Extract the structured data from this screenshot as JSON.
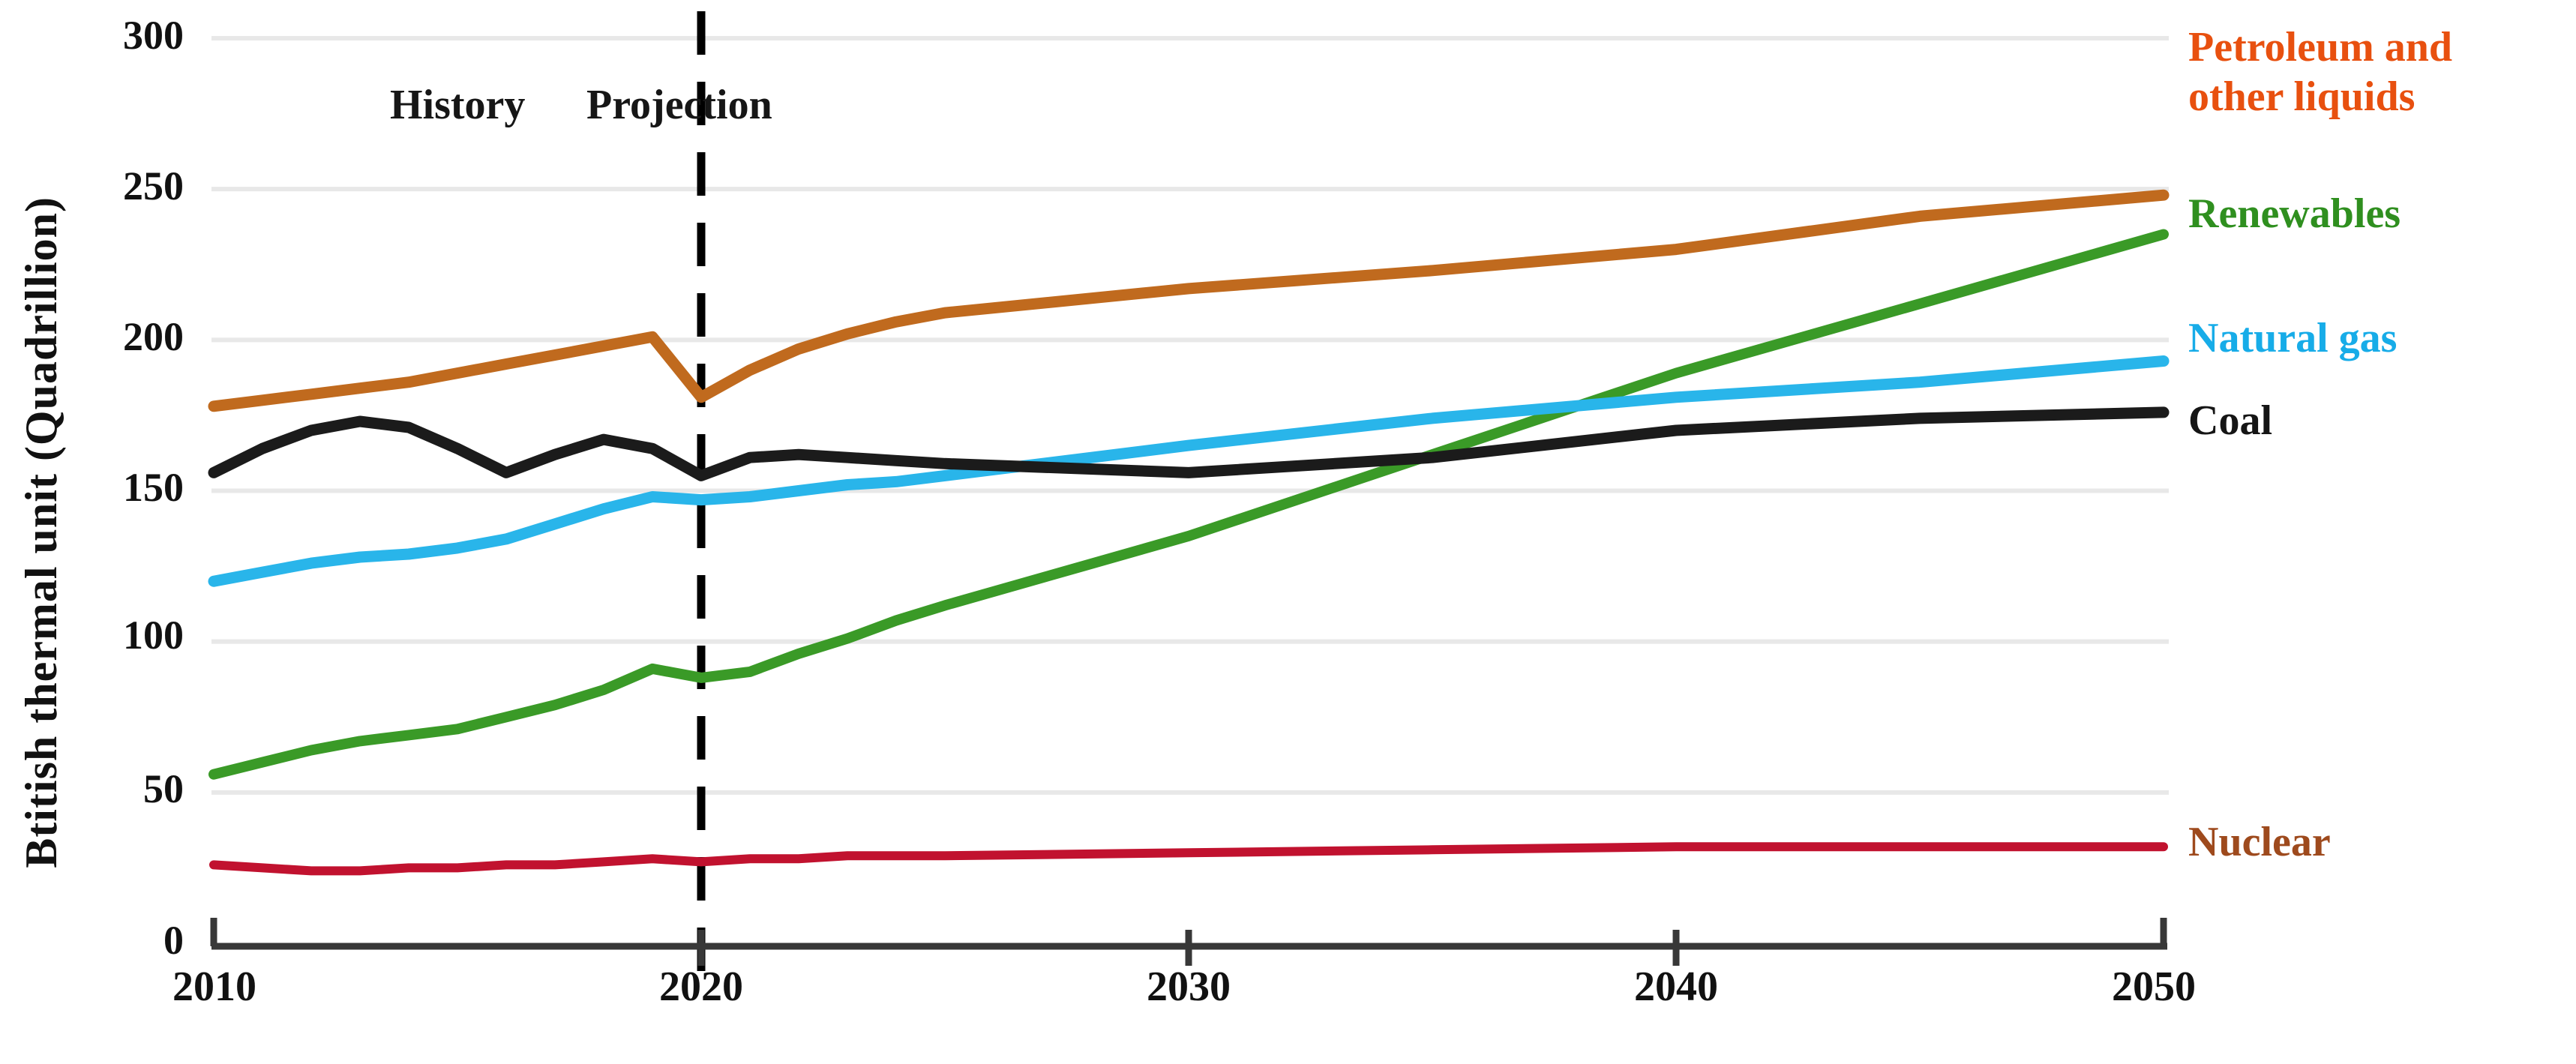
{
  "y_axis": {
    "title": "Btitish thermal unit (Quadrillion)",
    "tick_labels": [
      "300",
      "250",
      "200",
      "150",
      "100",
      "50",
      "0"
    ]
  },
  "x_axis": {
    "tick_labels": [
      "2010",
      "2020",
      "2030",
      "2040",
      "2050"
    ]
  },
  "annotations": {
    "history_label": "History",
    "projection_label": "Projection"
  },
  "legend": {
    "petroleum": {
      "line1": "Petroleum and",
      "line2": "other liquids",
      "color": "#E8500F"
    },
    "renewables": {
      "label": "Renewables",
      "color": "#2F8F1F"
    },
    "natural_gas": {
      "label": "Natural gas",
      "color": "#17ACE8"
    },
    "coal": {
      "label": "Coal",
      "color": "#151515"
    },
    "nuclear": {
      "label": "Nuclear",
      "color": "#9E4A1D"
    }
  },
  "colors": {
    "grid": "#e8e8e8",
    "axis": "#383838",
    "divider": "#000000"
  },
  "chart_data": {
    "type": "line",
    "title": "",
    "xlabel": "",
    "ylabel": "Btitish thermal unit (Quadrillion)",
    "xlim": [
      2010,
      2050
    ],
    "ylim": [
      0,
      300
    ],
    "xticks": [
      2010,
      2020,
      2030,
      2040,
      2050
    ],
    "yticks": [
      0,
      50,
      100,
      150,
      200,
      250,
      300
    ],
    "grid": true,
    "legend_position": "right",
    "history_projection_divider_x": 2020,
    "series": [
      {
        "name": "Petroleum and other liquids",
        "color": "#C06A1E",
        "points": [
          [
            2010,
            178
          ],
          [
            2011,
            180
          ],
          [
            2012,
            182
          ],
          [
            2013,
            184
          ],
          [
            2014,
            186
          ],
          [
            2015,
            189
          ],
          [
            2016,
            192
          ],
          [
            2017,
            195
          ],
          [
            2018,
            198
          ],
          [
            2019,
            201
          ],
          [
            2020,
            181
          ],
          [
            2021,
            190
          ],
          [
            2022,
            197
          ],
          [
            2023,
            202
          ],
          [
            2024,
            206
          ],
          [
            2025,
            209
          ],
          [
            2030,
            217
          ],
          [
            2035,
            223
          ],
          [
            2040,
            230
          ],
          [
            2045,
            241
          ],
          [
            2050,
            248
          ]
        ]
      },
      {
        "name": "Renewables",
        "color": "#3A9A27",
        "points": [
          [
            2010,
            56
          ],
          [
            2011,
            60
          ],
          [
            2012,
            64
          ],
          [
            2013,
            67
          ],
          [
            2014,
            69
          ],
          [
            2015,
            71
          ],
          [
            2016,
            75
          ],
          [
            2017,
            79
          ],
          [
            2018,
            84
          ],
          [
            2019,
            91
          ],
          [
            2020,
            88
          ],
          [
            2021,
            90
          ],
          [
            2022,
            96
          ],
          [
            2023,
            101
          ],
          [
            2024,
            107
          ],
          [
            2025,
            112
          ],
          [
            2030,
            135
          ],
          [
            2035,
            162
          ],
          [
            2040,
            189
          ],
          [
            2045,
            212
          ],
          [
            2050,
            235
          ]
        ]
      },
      {
        "name": "Natural gas",
        "color": "#29B5EA",
        "points": [
          [
            2010,
            120
          ],
          [
            2011,
            123
          ],
          [
            2012,
            126
          ],
          [
            2013,
            128
          ],
          [
            2014,
            129
          ],
          [
            2015,
            131
          ],
          [
            2016,
            134
          ],
          [
            2017,
            139
          ],
          [
            2018,
            144
          ],
          [
            2019,
            148
          ],
          [
            2020,
            147
          ],
          [
            2021,
            148
          ],
          [
            2022,
            150
          ],
          [
            2023,
            152
          ],
          [
            2024,
            153
          ],
          [
            2025,
            155
          ],
          [
            2030,
            165
          ],
          [
            2035,
            174
          ],
          [
            2040,
            181
          ],
          [
            2045,
            186
          ],
          [
            2050,
            193
          ]
        ]
      },
      {
        "name": "Coal",
        "color": "#1B1B1B",
        "points": [
          [
            2010,
            156
          ],
          [
            2011,
            164
          ],
          [
            2012,
            170
          ],
          [
            2013,
            173
          ],
          [
            2014,
            171
          ],
          [
            2015,
            164
          ],
          [
            2016,
            156
          ],
          [
            2017,
            162
          ],
          [
            2018,
            167
          ],
          [
            2019,
            164
          ],
          [
            2020,
            155
          ],
          [
            2021,
            161
          ],
          [
            2022,
            162
          ],
          [
            2023,
            161
          ],
          [
            2024,
            160
          ],
          [
            2025,
            159
          ],
          [
            2030,
            156
          ],
          [
            2035,
            161
          ],
          [
            2040,
            170
          ],
          [
            2045,
            174
          ],
          [
            2050,
            176
          ]
        ]
      },
      {
        "name": "Nuclear",
        "color": "#C1122F",
        "points": [
          [
            2010,
            26
          ],
          [
            2011,
            25
          ],
          [
            2012,
            24
          ],
          [
            2013,
            24
          ],
          [
            2014,
            25
          ],
          [
            2015,
            25
          ],
          [
            2016,
            26
          ],
          [
            2017,
            26
          ],
          [
            2018,
            27
          ],
          [
            2019,
            28
          ],
          [
            2020,
            27
          ],
          [
            2021,
            28
          ],
          [
            2022,
            28
          ],
          [
            2023,
            29
          ],
          [
            2024,
            29
          ],
          [
            2025,
            29
          ],
          [
            2030,
            30
          ],
          [
            2035,
            31
          ],
          [
            2040,
            32
          ],
          [
            2045,
            32
          ],
          [
            2050,
            32
          ]
        ]
      }
    ]
  }
}
